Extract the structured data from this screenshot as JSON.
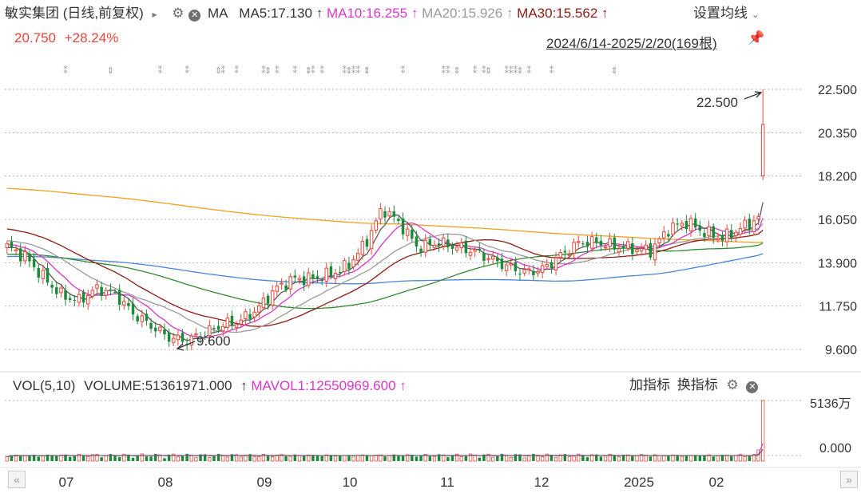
{
  "header": {
    "title": "敏实集团 (日线,前复权)",
    "play_glyph": "▸",
    "ma_label": "MA",
    "ma5": "MA5:17.130",
    "ma10": "MA10:16.255",
    "ma20": "MA20:15.926",
    "ma30": "MA30:15.562",
    "up_arrow": "↑",
    "settings_label": "设置均线",
    "price": "20.750",
    "change": "+28.24%",
    "range": "2024/6/14-2025/2/20(169根)"
  },
  "volume_panel": {
    "label": "VOL(5,10)",
    "volume": "VOLUME:51361971.000",
    "up_arrow": "↑",
    "mavol1": "MAVOL1:12550969.600",
    "add_indicator": "加指标",
    "switch_indicator": "换指标",
    "y_top": "5136万",
    "y_zero": "0.000"
  },
  "colors": {
    "up": "#e8463a",
    "down": "#1b8a3a",
    "ma5": "#5a5a5a",
    "ma10": "#d838c8",
    "ma20": "#9a9a9a",
    "ma30": "#8b1b10",
    "ma60": "#2f8a2f",
    "ma120": "#4a86d8",
    "ma250": "#f0a020"
  },
  "chart_data": [
    {
      "type": "candlestick",
      "title": "敏实集团 (日线,前复权)",
      "date_range": [
        "2024/6/14",
        "2025/2/20"
      ],
      "bar_count": 169,
      "y_ticks": [
        "22.500",
        "20.350",
        "18.200",
        "16.050",
        "13.900",
        "11.750",
        "9.600"
      ],
      "ylim": [
        9.6,
        22.5
      ],
      "x_ticks": [
        "07",
        "08",
        "09",
        "10",
        "11",
        "12",
        "2025",
        "02"
      ],
      "annotations": {
        "high": {
          "value": "22.500",
          "date": "2025/2/20"
        },
        "low": {
          "value": "9.600"
        }
      },
      "last": {
        "open": 18.2,
        "high": 22.5,
        "low": 18.0,
        "close": 20.75
      },
      "moving_averages": {
        "MA5": 17.13,
        "MA10": 16.255,
        "MA20": 15.926,
        "MA30": 15.562
      },
      "close_path": [
        14.7,
        14.2,
        13.2,
        12.3,
        12.0,
        12.6,
        12.4,
        11.4,
        10.8,
        10.2,
        10.0,
        10.4,
        10.8,
        11.0,
        11.6,
        12.6,
        13.1,
        13.1,
        13.3,
        13.7,
        14.8,
        16.6,
        15.8,
        14.6,
        14.9,
        14.7,
        14.5,
        14.1,
        13.7,
        13.4,
        13.6,
        14.3,
        14.9,
        14.9,
        14.7,
        14.6,
        14.5,
        15.6,
        15.9,
        15.4,
        15.1,
        15.6,
        16.1,
        20.75
      ]
    },
    {
      "type": "bar",
      "title": "VOL(5,10)",
      "last_volume": 51361971.0,
      "mavol1": 12550969.6,
      "ylim": [
        0,
        51360000
      ]
    }
  ]
}
